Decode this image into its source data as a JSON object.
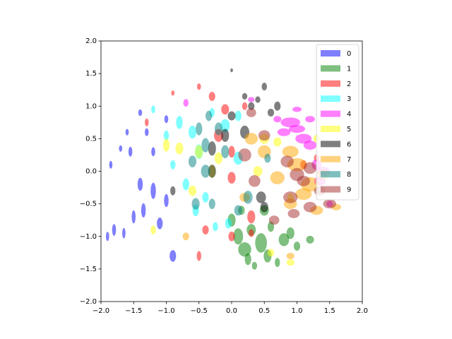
{
  "chart_data": {
    "type": "scatter",
    "xlim": [
      -2,
      2
    ],
    "ylim": [
      -2,
      2
    ],
    "xticks": [
      {
        "value": -2,
        "label": "−2.0"
      },
      {
        "value": -1.5,
        "label": "−1.5"
      },
      {
        "value": -1,
        "label": "−1.0"
      },
      {
        "value": -0.5,
        "label": "−0.5"
      },
      {
        "value": 0,
        "label": "0.0"
      },
      {
        "value": 0.5,
        "label": "0.5"
      },
      {
        "value": 1,
        "label": "1.0"
      },
      {
        "value": 1.5,
        "label": "1.5"
      },
      {
        "value": 2,
        "label": "2.0"
      }
    ],
    "yticks": [
      {
        "value": -2,
        "label": "−2.0"
      },
      {
        "value": -1.5,
        "label": "−1.5"
      },
      {
        "value": -1,
        "label": "−1.0"
      },
      {
        "value": -0.5,
        "label": "−0.5"
      },
      {
        "value": 0,
        "label": "0.0"
      },
      {
        "value": 0.5,
        "label": "0.5"
      },
      {
        "value": 1,
        "label": "1.0"
      },
      {
        "value": 1.5,
        "label": "1.5"
      },
      {
        "value": 2,
        "label": "2.0"
      }
    ],
    "legend": "upper right",
    "alpha": 0.5,
    "series": [
      {
        "name": "0",
        "color": "blue",
        "x": [
          -1.9,
          -1.8,
          -1.85,
          -1.7,
          -1.55,
          -1.4,
          -1.35,
          -1.3,
          -1.2,
          -1.1,
          -1.0,
          -1.2,
          -0.9,
          -1.5,
          -1.65,
          -1.0,
          -1.6,
          -1.4
        ],
        "values": [
          -1.0,
          -0.9,
          0.1,
          0.35,
          0.3,
          -0.2,
          -0.6,
          0.6,
          -0.3,
          -0.8,
          -0.45,
          0.3,
          -1.3,
          -0.7,
          -0.95,
          0.8,
          0.6,
          0.9
        ],
        "widths": [
          0.05,
          0.06,
          0.05,
          0.05,
          0.06,
          0.08,
          0.07,
          0.06,
          0.08,
          0.09,
          0.07,
          0.06,
          0.1,
          0.06,
          0.05,
          0.06,
          0.05,
          0.06
        ],
        "heights": [
          0.14,
          0.18,
          0.12,
          0.1,
          0.15,
          0.2,
          0.22,
          0.12,
          0.25,
          0.18,
          0.2,
          0.14,
          0.18,
          0.2,
          0.16,
          0.12,
          0.1,
          0.1
        ]
      },
      {
        "name": "1",
        "color": "green",
        "x": [
          0.0,
          0.1,
          0.2,
          0.3,
          0.45,
          0.55,
          0.6,
          0.7,
          0.8,
          0.9,
          1.0,
          0.35,
          0.15,
          1.2,
          0.5,
          0.25
        ],
        "values": [
          -0.75,
          -1.0,
          -1.2,
          -0.9,
          -1.1,
          -1.3,
          -0.85,
          -1.4,
          -1.05,
          -0.95,
          -1.15,
          -1.45,
          -0.6,
          -1.05,
          -0.6,
          -1.35
        ],
        "widths": [
          0.12,
          0.15,
          0.2,
          0.14,
          0.18,
          0.12,
          0.1,
          0.08,
          0.16,
          0.12,
          0.1,
          0.08,
          0.1,
          0.12,
          0.14,
          0.1
        ],
        "heights": [
          0.2,
          0.25,
          0.22,
          0.18,
          0.3,
          0.2,
          0.16,
          0.14,
          0.2,
          0.18,
          0.14,
          0.12,
          0.14,
          0.12,
          0.16,
          0.18
        ]
      },
      {
        "name": "2",
        "color": "red",
        "x": [
          -1.3,
          -0.9,
          -0.5,
          -0.3,
          -0.1,
          0.0,
          0.2,
          -0.2,
          0.0,
          -0.5,
          -0.4,
          0.0,
          0.3,
          1.1,
          1.3,
          0.3
        ],
        "values": [
          0.75,
          1.2,
          1.3,
          1.15,
          0.95,
          0.3,
          1.0,
          0.55,
          -0.1,
          -1.3,
          -0.9,
          -1.0,
          -0.7,
          0.1,
          0.2,
          -0.95
        ],
        "widths": [
          0.06,
          0.05,
          0.06,
          0.1,
          0.12,
          0.1,
          0.08,
          0.14,
          0.12,
          0.07,
          0.1,
          0.1,
          0.12,
          0.1,
          0.08,
          0.08
        ],
        "heights": [
          0.12,
          0.08,
          0.1,
          0.14,
          0.16,
          0.18,
          0.12,
          0.2,
          0.18,
          0.15,
          0.14,
          0.15,
          0.2,
          0.14,
          0.12,
          0.12
        ]
      },
      {
        "name": "3",
        "color": "cyan",
        "x": [
          -1.2,
          -1.0,
          -0.8,
          -0.6,
          -0.5,
          -0.7,
          -0.4,
          -0.3,
          -0.1,
          0.1,
          -0.25,
          -0.05,
          -0.55,
          -0.9,
          0.1
        ],
        "values": [
          0.95,
          0.55,
          0.75,
          0.6,
          0.3,
          -0.2,
          -0.4,
          0.9,
          0.7,
          0.85,
          -0.85,
          -0.8,
          -0.6,
          0.1,
          0.2
        ],
        "widths": [
          0.06,
          0.08,
          0.1,
          0.12,
          0.12,
          0.1,
          0.1,
          0.08,
          0.14,
          0.1,
          0.08,
          0.1,
          0.1,
          0.08,
          0.14
        ],
        "heights": [
          0.12,
          0.15,
          0.2,
          0.2,
          0.22,
          0.18,
          0.16,
          0.14,
          0.2,
          0.16,
          0.14,
          0.16,
          0.18,
          0.14,
          0.2
        ]
      },
      {
        "name": "4",
        "color": "magenta",
        "x": [
          0.9,
          1.0,
          0.8,
          1.1,
          1.2,
          1.3,
          1.4,
          1.0,
          1.2,
          1.5,
          0.7,
          0.3,
          -0.7,
          1.35
        ],
        "values": [
          0.75,
          0.65,
          0.6,
          0.5,
          0.4,
          0.1,
          0.0,
          0.95,
          0.8,
          -0.5,
          0.8,
          1.1,
          1.05,
          -0.15
        ],
        "widths": [
          0.3,
          0.25,
          0.2,
          0.25,
          0.2,
          0.15,
          0.2,
          0.14,
          0.15,
          0.1,
          0.12,
          0.1,
          0.08,
          0.18
        ],
        "heights": [
          0.15,
          0.12,
          0.12,
          0.15,
          0.14,
          0.16,
          0.14,
          0.08,
          0.1,
          0.1,
          0.1,
          0.08,
          0.12,
          0.14
        ]
      },
      {
        "name": "5",
        "color": "yellow",
        "x": [
          -1.0,
          -0.8,
          -0.5,
          -0.3,
          -0.6,
          -1.2,
          0.5,
          0.7,
          0.9,
          0.6,
          0.9,
          1.3,
          -0.2,
          0.4
        ],
        "values": [
          0.4,
          0.35,
          0.3,
          0.0,
          -0.3,
          -0.9,
          0.5,
          0.45,
          -0.4,
          -1.25,
          -1.4,
          0.5,
          0.2,
          0.0
        ],
        "widths": [
          0.1,
          0.12,
          0.12,
          0.1,
          0.12,
          0.08,
          0.15,
          0.12,
          0.1,
          0.1,
          0.12,
          0.1,
          0.12,
          0.14
        ],
        "heights": [
          0.2,
          0.18,
          0.2,
          0.2,
          0.16,
          0.14,
          0.16,
          0.14,
          0.12,
          0.12,
          0.1,
          0.12,
          0.18,
          0.16
        ]
      },
      {
        "name": "6",
        "color": "black",
        "x": [
          0.0,
          0.2,
          0.3,
          0.4,
          0.5,
          0.6,
          0.7,
          0.0,
          -0.1,
          -0.3,
          -0.3,
          0.45,
          -0.9,
          0.2,
          0.5
        ],
        "values": [
          1.55,
          1.15,
          1.0,
          1.1,
          1.3,
          0.9,
          1.0,
          0.85,
          0.55,
          0.35,
          0.0,
          -0.4,
          -0.3,
          0.6,
          -0.55
        ],
        "widths": [
          0.04,
          0.08,
          0.1,
          0.08,
          0.08,
          0.1,
          0.1,
          0.12,
          0.12,
          0.12,
          0.12,
          0.15,
          0.08,
          0.14,
          0.12
        ],
        "heights": [
          0.06,
          0.1,
          0.12,
          0.1,
          0.12,
          0.12,
          0.14,
          0.14,
          0.2,
          0.22,
          0.2,
          0.18,
          0.14,
          0.2,
          0.16
        ]
      },
      {
        "name": "7",
        "color": "orange",
        "x": [
          0.5,
          0.9,
          1.0,
          1.2,
          1.1,
          1.3,
          1.6,
          0.9,
          0.7,
          0.3,
          1.4,
          0.2,
          -0.7,
          0.9
        ],
        "values": [
          0.3,
          0.3,
          0.1,
          -0.2,
          -0.35,
          -0.6,
          -0.55,
          -0.5,
          -0.1,
          0.5,
          -0.05,
          -0.4,
          -1.0,
          -1.3
        ],
        "widths": [
          0.2,
          0.25,
          0.3,
          0.28,
          0.25,
          0.2,
          0.15,
          0.2,
          0.22,
          0.2,
          0.2,
          0.16,
          0.1,
          0.12
        ],
        "heights": [
          0.2,
          0.18,
          0.2,
          0.22,
          0.18,
          0.14,
          0.1,
          0.16,
          0.2,
          0.18,
          0.16,
          0.14,
          0.12,
          0.1
        ]
      },
      {
        "name": "8",
        "color": "teal",
        "x": [
          -0.5,
          -0.4,
          -0.2,
          -0.4,
          -0.6,
          -0.55,
          -0.3,
          0.1,
          0.25,
          0.55,
          -0.1,
          -0.35
        ],
        "values": [
          0.65,
          0.4,
          0.65,
          0.0,
          0.15,
          -0.5,
          -0.5,
          -0.6,
          -0.4,
          0.2,
          0.3,
          0.85
        ],
        "widths": [
          0.1,
          0.12,
          0.12,
          0.14,
          0.12,
          0.12,
          0.1,
          0.12,
          0.14,
          0.1,
          0.12,
          0.1
        ],
        "heights": [
          0.2,
          0.22,
          0.2,
          0.2,
          0.18,
          0.18,
          0.16,
          0.16,
          0.2,
          0.14,
          0.2,
          0.16
        ]
      },
      {
        "name": "9",
        "color": "brown",
        "x": [
          0.3,
          0.5,
          0.85,
          1.0,
          1.2,
          1.35,
          1.5,
          1.2,
          0.9,
          0.2,
          0.35,
          1.1,
          0.95,
          0.65
        ],
        "values": [
          0.9,
          0.55,
          0.15,
          -0.05,
          0.05,
          -0.3,
          -0.5,
          -0.55,
          -0.4,
          0.25,
          -0.15,
          -0.15,
          -0.65,
          -0.75
        ],
        "widths": [
          0.15,
          0.18,
          0.2,
          0.22,
          0.2,
          0.18,
          0.2,
          0.2,
          0.22,
          0.2,
          0.18,
          0.2,
          0.18,
          0.16
        ],
        "heights": [
          0.14,
          0.16,
          0.18,
          0.2,
          0.18,
          0.14,
          0.14,
          0.16,
          0.18,
          0.2,
          0.18,
          0.16,
          0.14,
          0.14
        ]
      }
    ]
  }
}
